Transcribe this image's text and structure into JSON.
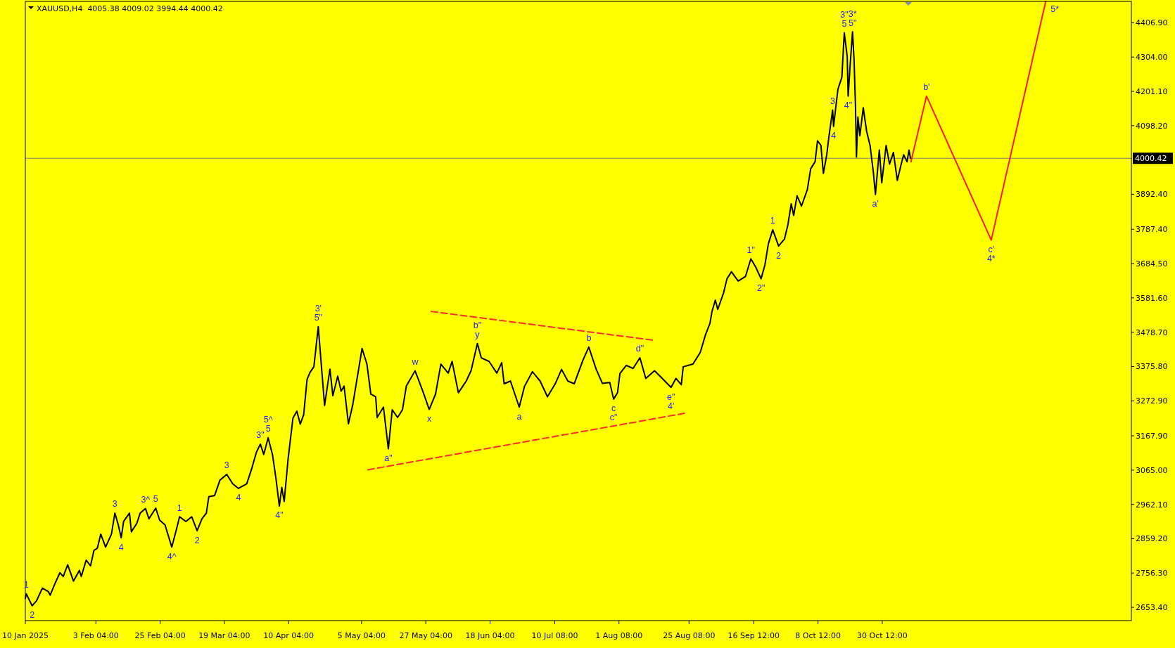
{
  "chart_data": {
    "type": "line",
    "title": "XAUUSD,H4  4005.38 4009.02 3994.44 4000.42",
    "xlim": [
      "2025-01-10T00:00",
      "2026-01-23T20:00"
    ],
    "xticks": [
      {
        "value": "2025-01-10T00:00",
        "label": "10 Jan 2025"
      },
      {
        "value": "2025-02-03T04:00",
        "label": "3 Feb 04:00"
      },
      {
        "value": "2025-02-25T04:00",
        "label": "25 Feb 04:00"
      },
      {
        "value": "2025-03-19T04:00",
        "label": "19 Mar 04:00"
      },
      {
        "value": "2025-04-10T04:00",
        "label": "10 Apr 04:00"
      },
      {
        "value": "2025-05-05T04:00",
        "label": "5 May 04:00"
      },
      {
        "value": "2025-05-27T04:00",
        "label": "27 May 04:00"
      },
      {
        "value": "2025-06-18T04:00",
        "label": "18 Jun 04:00"
      },
      {
        "value": "2025-07-10T08:00",
        "label": "10 Jul 08:00"
      },
      {
        "value": "2025-08-01T08:00",
        "label": "1 Aug 08:00"
      },
      {
        "value": "2025-08-25T08:00",
        "label": "25 Aug 08:00"
      },
      {
        "value": "2025-09-16T12:00",
        "label": "16 Sep 12:00"
      },
      {
        "value": "2025-10-08T12:00",
        "label": "8 Oct 12:00"
      },
      {
        "value": "2025-10-30T12:00",
        "label": "30 Oct 12:00"
      }
    ],
    "ylim": [
      2613.6,
      4471
    ],
    "yticks": [
      {
        "value": 4406.9,
        "label": "4406.90"
      },
      {
        "value": 4304,
        "label": "4304.00"
      },
      {
        "value": 4201.1,
        "label": "4201.10"
      },
      {
        "value": 4098.2,
        "label": "4098.20"
      },
      {
        "value": 3892.4,
        "label": "3892.40"
      },
      {
        "value": 3787.4,
        "label": "3787.40"
      },
      {
        "value": 3684.5,
        "label": "3684.50"
      },
      {
        "value": 3581.6,
        "label": "3581.60"
      },
      {
        "value": 3478.7,
        "label": "3478.70"
      },
      {
        "value": 3375.8,
        "label": "3375.80"
      },
      {
        "value": 3272.9,
        "label": "3272.90"
      },
      {
        "value": 3167.9,
        "label": "3167.90"
      },
      {
        "value": 3065,
        "label": "3065.00"
      },
      {
        "value": 2962.1,
        "label": "2962.10"
      },
      {
        "value": 2859.2,
        "label": "2859.20"
      },
      {
        "value": 2756.3,
        "label": "2756.30"
      },
      {
        "value": 2653.4,
        "label": "2653.40"
      }
    ],
    "series": [
      {
        "color": "#000000",
        "x": [
          "2025-01-10T00:00",
          "2025-01-10T08:00",
          "2025-01-12T08:00",
          "2025-01-13T20:00",
          "2025-01-15T20:00",
          "2025-01-17T20:00",
          "2025-01-18T12:00",
          "2025-01-20T04:00",
          "2025-01-21T20:00",
          "2025-01-23T00:00",
          "2025-01-24T12:00",
          "2025-01-26T12:00",
          "2025-01-28T12:00",
          "2025-01-29T04:00",
          "2025-01-30T20:00",
          "2025-02-01T08:00",
          "2025-02-02T12:00",
          "2025-02-03T16:00",
          "2025-02-04T20:00",
          "2025-02-06T12:00",
          "2025-02-08T12:00",
          "2025-02-09T16:00",
          "2025-02-10T20:00",
          "2025-02-11T20:00",
          "2025-02-12T16:00",
          "2025-02-14T16:00",
          "2025-02-15T08:00",
          "2025-02-17T04:00",
          "2025-02-18T08:00",
          "2025-02-20T04:00",
          "2025-02-21T08:00",
          "2025-02-23T16:00",
          "2025-02-25T00:00",
          "2025-02-26T20:00",
          "2025-03-01T04:00",
          "2025-03-02T20:00",
          "2025-03-03T20:00",
          "2025-03-06T00:00",
          "2025-03-08T00:00",
          "2025-03-09T20:00",
          "2025-03-11T12:00",
          "2025-03-13T00:00",
          "2025-03-13T20:00",
          "2025-03-15T20:00",
          "2025-03-17T16:00",
          "2025-03-20T00:00",
          "2025-03-22T00:00",
          "2025-03-24T00:00",
          "2025-03-26T20:00",
          "2025-03-28T16:00",
          "2025-03-30T04:00",
          "2025-03-31T12:00",
          "2025-04-01T16:00",
          "2025-04-03T04:00",
          "2025-04-04T16:00",
          "2025-04-05T20:00",
          "2025-04-07T00:00",
          "2025-04-07T20:00",
          "2025-04-08T16:00",
          "2025-04-10T00:00",
          "2025-04-11T16:00",
          "2025-04-13T00:00",
          "2025-04-14T04:00",
          "2025-04-15T08:00",
          "2025-04-16T12:00",
          "2025-04-17T12:00",
          "2025-04-18T20:00",
          "2025-04-20T08:00",
          "2025-04-21T08:00",
          "2025-04-22T12:00",
          "2025-04-24T08:00",
          "2025-04-25T08:00",
          "2025-04-27T00:00",
          "2025-04-28T04:00",
          "2025-04-29T04:00",
          "2025-04-30T16:00",
          "2025-05-02T04:00",
          "2025-05-05T08:00",
          "2025-05-07T00:00",
          "2025-05-08T08:00",
          "2025-05-10T00:00",
          "2025-05-10T12:00",
          "2025-05-12T16:00",
          "2025-05-14T08:00",
          "2025-05-15T16:00",
          "2025-05-17T12:00",
          "2025-05-19T04:00",
          "2025-05-20T12:00",
          "2025-05-23T12:00",
          "2025-05-26T04:00",
          "2025-05-28T08:00",
          "2025-05-30T12:00",
          "2025-06-01T08:00",
          "2025-06-03T20:00",
          "2025-06-05T04:00",
          "2025-06-07T08:00",
          "2025-06-10T00:00",
          "2025-06-11T16:00",
          "2025-06-13T20:00",
          "2025-06-15T04:00",
          "2025-06-17T20:00",
          "2025-06-20T12:00",
          "2025-06-22T04:00",
          "2025-06-23T00:00",
          "2025-06-25T04:00",
          "2025-06-28T04:00",
          "2025-06-30T00:00",
          "2025-07-02T16:00",
          "2025-07-05T08:00",
          "2025-07-07T20:00",
          "2025-07-10T12:00",
          "2025-07-12T16:00",
          "2025-07-14T20:00",
          "2025-07-17T00:00",
          "2025-07-20T00:00",
          "2025-07-22T00:00",
          "2025-07-24T12:00",
          "2025-07-26T16:00",
          "2025-07-29T04:00",
          "2025-07-30T12:00",
          "2025-07-31T20:00",
          "2025-08-01T16:00",
          "2025-08-03T20:00",
          "2025-08-06T04:00",
          "2025-08-08T12:00",
          "2025-08-10T12:00",
          "2025-08-13T12:00",
          "2025-08-16T04:00",
          "2025-08-19T04:00",
          "2025-08-20T20:00",
          "2025-08-22T16:00",
          "2025-08-23T08:00",
          "2025-08-26T16:00",
          "2025-08-29T04:00",
          "2025-08-31T00:00",
          "2025-09-01T12:00",
          "2025-09-02T04:00",
          "2025-09-03T08:00",
          "2025-09-04T04:00",
          "2025-09-06T04:00",
          "2025-09-07T08:00",
          "2025-09-08T20:00",
          "2025-09-11T04:00",
          "2025-09-13T16:00",
          "2025-09-15T12:00",
          "2025-09-17T04:00",
          "2025-09-19T00:00",
          "2025-09-20T08:00",
          "2025-09-21T12:00",
          "2025-09-23T00:00",
          "2025-09-25T00:00",
          "2025-09-27T00:00",
          "2025-09-28T04:00",
          "2025-09-29T08:00",
          "2025-09-30T04:00",
          "2025-10-01T08:00",
          "2025-10-02T20:00",
          "2025-10-04T20:00",
          "2025-10-06T00:00",
          "2025-10-07T12:00",
          "2025-10-08T08:00",
          "2025-10-09T12:00",
          "2025-10-10T08:00",
          "2025-10-11T12:00",
          "2025-10-12T04:00",
          "2025-10-13T12:00",
          "2025-10-13T20:00",
          "2025-10-14T16:00",
          "2025-10-15T08:00",
          "2025-10-16T16:00",
          "2025-10-17T12:00",
          "2025-10-18T12:00",
          "2025-10-18T20:00",
          "2025-10-19T12:00",
          "2025-10-20T08:00",
          "2025-10-20T20:00",
          "2025-10-21T08:00",
          "2025-10-21T16:00",
          "2025-10-22T04:00",
          "2025-10-22T20:00",
          "2025-10-24T00:00",
          "2025-10-25T04:00",
          "2025-10-26T08:00",
          "2025-10-27T12:00",
          "2025-10-28T04:00",
          "2025-10-29T12:00",
          "2025-10-30T08:00",
          "2025-10-31T20:00",
          "2025-11-02T00:00",
          "2025-11-03T08:00",
          "2025-11-04T16:00",
          "2025-11-06T00:00",
          "2025-11-06T20:00",
          "2025-11-08T00:00",
          "2025-11-08T16:00",
          "2025-11-09T04:00"
        ],
        "values": [
          2680,
          2694,
          2658,
          2673,
          2711,
          2701,
          2690,
          2725,
          2757,
          2746,
          2781,
          2732,
          2764,
          2746,
          2795,
          2778,
          2824,
          2831,
          2873,
          2834,
          2873,
          2936,
          2901,
          2862,
          2911,
          2936,
          2880,
          2905,
          2936,
          2950,
          2919,
          2951,
          2915,
          2901,
          2834,
          2890,
          2925,
          2911,
          2925,
          2883,
          2919,
          2936,
          2985,
          2989,
          3035,
          3052,
          3024,
          3010,
          3024,
          3073,
          3119,
          3143,
          3112,
          3162,
          3111,
          3041,
          2957,
          3013,
          2971,
          3098,
          3221,
          3242,
          3203,
          3231,
          3337,
          3358,
          3375,
          3495,
          3386,
          3259,
          3368,
          3288,
          3347,
          3302,
          3317,
          3204,
          3262,
          3430,
          3383,
          3293,
          3285,
          3223,
          3254,
          3129,
          3246,
          3223,
          3246,
          3317,
          3363,
          3301,
          3247,
          3293,
          3383,
          3356,
          3391,
          3297,
          3332,
          3363,
          3445,
          3402,
          3391,
          3356,
          3387,
          3324,
          3332,
          3254,
          3317,
          3360,
          3332,
          3285,
          3324,
          3367,
          3332,
          3324,
          3395,
          3434,
          3368,
          3325,
          3328,
          3278,
          3297,
          3355,
          3379,
          3370,
          3402,
          3340,
          3363,
          3340,
          3313,
          3340,
          3321,
          3375,
          3383,
          3418,
          3472,
          3505,
          3540,
          3575,
          3547,
          3597,
          3639,
          3660,
          3632,
          3646,
          3699,
          3674,
          3639,
          3681,
          3744,
          3786,
          3737,
          3758,
          3800,
          3864,
          3829,
          3888,
          3857,
          3906,
          3969,
          3990,
          4053,
          4039,
          3955,
          4011,
          4060,
          4145,
          4096,
          4159,
          4208,
          4243,
          4377,
          4306,
          4187,
          4278,
          4380,
          4299,
          4159,
          4004,
          4124,
          4068,
          4152,
          4081,
          4039,
          3955,
          3892,
          4025,
          3927,
          4039,
          3983,
          4018,
          3934,
          3983,
          4011,
          3990,
          4025,
          4000.42
        ]
      },
      {
        "color": "#ff1a1a",
        "x": [
          "2025-11-09T08:00",
          "2025-11-14T16:00",
          "2025-12-06T20:00",
          "2025-12-25T12:00"
        ],
        "values": [
          3990,
          4187,
          3755,
          4471
        ]
      },
      {
        "color": "#ff2a2a",
        "line_style": "dashed",
        "x": [
          "2025-05-29T00:00",
          "2025-08-12T20:00"
        ],
        "values": [
          3541,
          3455
        ]
      },
      {
        "color": "#ff2a2a",
        "line_style": "dashed",
        "x": [
          "2025-05-07T08:00",
          "2025-08-24T04:00"
        ],
        "values": [
          3066,
          3236
        ]
      }
    ],
    "ref_lines": [
      {
        "axis": "y",
        "value": 4000.42,
        "label": "4000.42",
        "color": "#7f7f7f"
      }
    ],
    "annotations": [
      {
        "text": "1",
        "x": "2025-01-10T08:00",
        "y": 2694
      },
      {
        "text": "2",
        "x": "2025-01-12T08:00",
        "y": 2658
      },
      {
        "text": "3",
        "x": "2025-02-09T16:00",
        "y": 2936
      },
      {
        "text": "4",
        "x": "2025-02-11T20:00",
        "y": 2862
      },
      {
        "text": "3^",
        "x": "2025-02-20T04:00",
        "y": 2950
      },
      {
        "text": "5",
        "x": "2025-02-23T16:00",
        "y": 2951
      },
      {
        "text": "4^",
        "x": "2025-03-01T04:00",
        "y": 2834
      },
      {
        "text": "1",
        "x": "2025-03-03T20:00",
        "y": 2925
      },
      {
        "text": "2",
        "x": "2025-03-09T20:00",
        "y": 2883
      },
      {
        "text": "3",
        "x": "2025-03-20T00:00",
        "y": 3052
      },
      {
        "text": "4",
        "x": "2025-03-24T00:00",
        "y": 3010
      },
      {
        "text": "3\"",
        "x": "2025-03-31T12:00",
        "y": 3143
      },
      {
        "text": "5",
        "x": "2025-04-03T04:00",
        "y": 3162
      },
      {
        "text": "5^",
        "x": "2025-04-03T04:00",
        "y": 3162
      },
      {
        "text": "4\"",
        "x": "2025-04-07T00:00",
        "y": 2957
      },
      {
        "text": "5\"",
        "x": "2025-04-20T08:00",
        "y": 3495
      },
      {
        "text": "3'",
        "x": "2025-04-20T08:00",
        "y": 3495
      },
      {
        "text": "a\"",
        "x": "2025-05-14T08:00",
        "y": 3129
      },
      {
        "text": "w",
        "x": "2025-05-23T12:00",
        "y": 3363
      },
      {
        "text": "x",
        "x": "2025-05-28T08:00",
        "y": 3247
      },
      {
        "text": "y",
        "x": "2025-06-13T20:00",
        "y": 3445
      },
      {
        "text": "b\"",
        "x": "2025-06-13T20:00",
        "y": 3445
      },
      {
        "text": "a",
        "x": "2025-06-28T04:00",
        "y": 3254
      },
      {
        "text": "b",
        "x": "2025-07-22T00:00",
        "y": 3434
      },
      {
        "text": "c",
        "x": "2025-07-30T12:00",
        "y": 3278
      },
      {
        "text": "c\"",
        "x": "2025-07-30T12:00",
        "y": 3278
      },
      {
        "text": "d\"",
        "x": "2025-08-08T12:00",
        "y": 3402
      },
      {
        "text": "e\"",
        "x": "2025-08-19T04:00",
        "y": 3313
      },
      {
        "text": "4'",
        "x": "2025-08-19T04:00",
        "y": 3313
      },
      {
        "text": "1\"",
        "x": "2025-09-15T12:00",
        "y": 3699
      },
      {
        "text": "2\"",
        "x": "2025-09-19T00:00",
        "y": 3639
      },
      {
        "text": "1",
        "x": "2025-09-23T00:00",
        "y": 3786
      },
      {
        "text": "2",
        "x": "2025-09-25T00:00",
        "y": 3737
      },
      {
        "text": "3",
        "x": "2025-10-13T12:00",
        "y": 4145
      },
      {
        "text": "4",
        "x": "2025-10-13T20:00",
        "y": 4096
      },
      {
        "text": "5",
        "x": "2025-10-17T12:00",
        "y": 4377
      },
      {
        "text": "3\"",
        "x": "2025-10-17T12:00",
        "y": 4377
      },
      {
        "text": "4\"",
        "x": "2025-10-18T20:00",
        "y": 4187
      },
      {
        "text": "5\"",
        "x": "2025-10-20T08:00",
        "y": 4380
      },
      {
        "text": "3*",
        "x": "2025-10-20T08:00",
        "y": 4380
      },
      {
        "text": "a'",
        "x": "2025-10-28T04:00",
        "y": 3892
      },
      {
        "text": "b'",
        "x": "2025-11-14T16:00",
        "y": 4187
      },
      {
        "text": "c'",
        "x": "2025-12-06T20:00",
        "y": 3755
      },
      {
        "text": "4*",
        "x": "2025-12-06T20:00",
        "y": 3755
      },
      {
        "text": "5*",
        "x": "2025-12-25T12:00",
        "y": 4471
      }
    ]
  }
}
